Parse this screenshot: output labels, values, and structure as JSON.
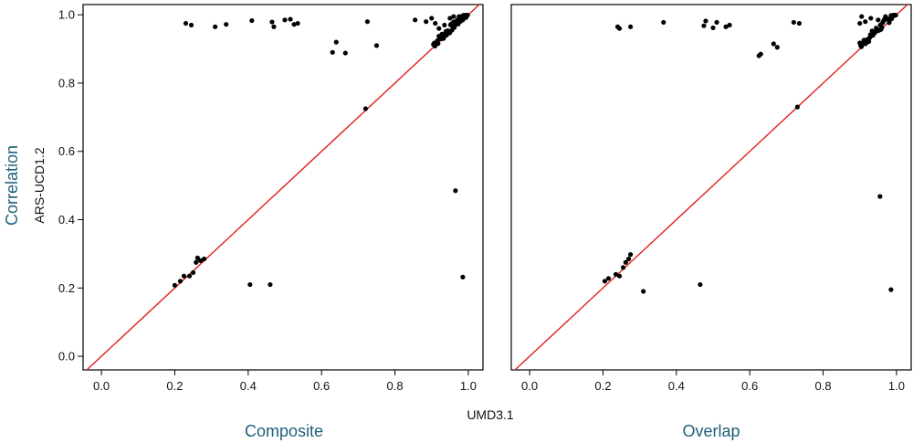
{
  "figure": {
    "row_label": "Correlation",
    "ylabel": "ARS-UCD1.2",
    "xlabel": "UMD3.1",
    "colors": {
      "accent": "#1f5f7a",
      "diagonal": "#e02020",
      "points": "#000000",
      "frame": "#000000"
    }
  },
  "chart_data": [
    {
      "type": "scatter",
      "title": "Composite",
      "xlabel": "UMD3.1",
      "ylabel": "ARS-UCD1.2",
      "xlim": [
        -0.05,
        1.04
      ],
      "ylim": [
        -0.04,
        1.03
      ],
      "x_ticks": [
        "0.0",
        "0.2",
        "0.4",
        "0.6",
        "0.8",
        "1.0"
      ],
      "y_ticks": [
        "0.0",
        "0.2",
        "0.4",
        "0.6",
        "0.8",
        "1.0"
      ],
      "reference_line": "y = x",
      "grid": false,
      "points": [
        [
          0.23,
          0.975
        ],
        [
          0.245,
          0.97
        ],
        [
          0.31,
          0.965
        ],
        [
          0.34,
          0.972
        ],
        [
          0.41,
          0.983
        ],
        [
          0.465,
          0.979
        ],
        [
          0.47,
          0.965
        ],
        [
          0.5,
          0.985
        ],
        [
          0.515,
          0.987
        ],
        [
          0.525,
          0.972
        ],
        [
          0.535,
          0.975
        ],
        [
          0.725,
          0.98
        ],
        [
          0.855,
          0.985
        ],
        [
          0.885,
          0.98
        ],
        [
          0.9,
          0.99
        ],
        [
          0.91,
          0.975
        ],
        [
          0.92,
          0.96
        ],
        [
          0.935,
          0.97
        ],
        [
          0.95,
          0.99
        ],
        [
          0.96,
          0.995
        ],
        [
          0.97,
          0.985
        ],
        [
          0.98,
          0.995
        ],
        [
          0.99,
          0.998
        ],
        [
          0.995,
          0.999
        ],
        [
          0.63,
          0.89
        ],
        [
          0.64,
          0.92
        ],
        [
          0.665,
          0.888
        ],
        [
          0.75,
          0.91
        ],
        [
          0.72,
          0.725
        ],
        [
          0.965,
          0.485
        ],
        [
          0.985,
          0.232
        ],
        [
          0.2,
          0.208
        ],
        [
          0.215,
          0.22
        ],
        [
          0.225,
          0.235
        ],
        [
          0.24,
          0.235
        ],
        [
          0.25,
          0.245
        ],
        [
          0.258,
          0.275
        ],
        [
          0.262,
          0.288
        ],
        [
          0.27,
          0.28
        ],
        [
          0.28,
          0.285
        ],
        [
          0.405,
          0.21
        ],
        [
          0.46,
          0.21
        ]
      ],
      "diagonal_cluster": {
        "from": 0.905,
        "to": 0.998,
        "count": 45,
        "spread": 0.012
      }
    },
    {
      "type": "scatter",
      "title": "Overlap",
      "xlabel": "UMD3.1",
      "ylabel": "ARS-UCD1.2",
      "xlim": [
        -0.05,
        1.04
      ],
      "ylim": [
        -0.04,
        1.03
      ],
      "x_ticks": [
        "0.0",
        "0.2",
        "0.4",
        "0.6",
        "0.8",
        "1.0"
      ],
      "y_ticks": [],
      "reference_line": "y = x",
      "grid": false,
      "points": [
        [
          0.24,
          0.965
        ],
        [
          0.245,
          0.96
        ],
        [
          0.275,
          0.965
        ],
        [
          0.365,
          0.978
        ],
        [
          0.475,
          0.968
        ],
        [
          0.48,
          0.982
        ],
        [
          0.5,
          0.962
        ],
        [
          0.51,
          0.978
        ],
        [
          0.535,
          0.965
        ],
        [
          0.545,
          0.97
        ],
        [
          0.72,
          0.978
        ],
        [
          0.735,
          0.975
        ],
        [
          0.9,
          0.975
        ],
        [
          0.905,
          0.995
        ],
        [
          0.915,
          0.98
        ],
        [
          0.93,
          0.99
        ],
        [
          0.95,
          0.985
        ],
        [
          0.97,
          0.995
        ],
        [
          0.985,
          0.998
        ],
        [
          0.625,
          0.88
        ],
        [
          0.63,
          0.885
        ],
        [
          0.665,
          0.915
        ],
        [
          0.675,
          0.905
        ],
        [
          0.73,
          0.73
        ],
        [
          0.955,
          0.468
        ],
        [
          0.985,
          0.195
        ],
        [
          0.205,
          0.22
        ],
        [
          0.215,
          0.228
        ],
        [
          0.235,
          0.24
        ],
        [
          0.245,
          0.235
        ],
        [
          0.255,
          0.26
        ],
        [
          0.262,
          0.275
        ],
        [
          0.27,
          0.285
        ],
        [
          0.275,
          0.298
        ],
        [
          0.31,
          0.19
        ],
        [
          0.465,
          0.21
        ]
      ],
      "diagonal_cluster": {
        "from": 0.9,
        "to": 0.998,
        "count": 45,
        "spread": 0.012
      }
    }
  ]
}
